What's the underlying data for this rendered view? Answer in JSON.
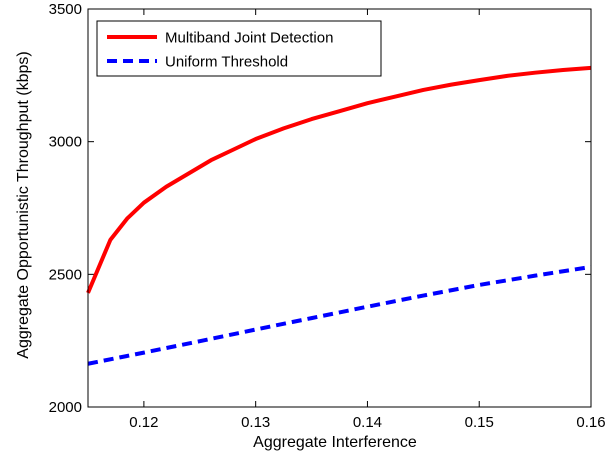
{
  "chart_data": {
    "type": "line",
    "title": "",
    "xlabel": "Aggregate Interference",
    "ylabel": "Aggregate Opportunistic Throughput (kbps)",
    "xlim": [
      0.115,
      0.16
    ],
    "ylim": [
      2000,
      3500
    ],
    "xticks": [
      0.12,
      0.13,
      0.14,
      0.15,
      0.16
    ],
    "xtick_labels": [
      "0.12",
      "0.13",
      "0.14",
      "0.15",
      "0.16"
    ],
    "yticks": [
      2000,
      2500,
      3000,
      3500
    ],
    "ytick_labels": [
      "2000",
      "2500",
      "3000",
      "3500"
    ],
    "grid": false,
    "legend_position": "top-left",
    "series": [
      {
        "name": "Multiband Joint Detection",
        "color": "#ff0000",
        "line_style": "solid",
        "points": [
          {
            "x": 0.115,
            "y": 2430
          },
          {
            "x": 0.117,
            "y": 2630
          },
          {
            "x": 0.1185,
            "y": 2710
          },
          {
            "x": 0.12,
            "y": 2770
          },
          {
            "x": 0.122,
            "y": 2830
          },
          {
            "x": 0.124,
            "y": 2880
          },
          {
            "x": 0.126,
            "y": 2930
          },
          {
            "x": 0.128,
            "y": 2970
          },
          {
            "x": 0.13,
            "y": 3010
          },
          {
            "x": 0.1325,
            "y": 3050
          },
          {
            "x": 0.135,
            "y": 3085
          },
          {
            "x": 0.1375,
            "y": 3115
          },
          {
            "x": 0.14,
            "y": 3145
          },
          {
            "x": 0.1425,
            "y": 3170
          },
          {
            "x": 0.145,
            "y": 3195
          },
          {
            "x": 0.1475,
            "y": 3215
          },
          {
            "x": 0.15,
            "y": 3232
          },
          {
            "x": 0.1525,
            "y": 3248
          },
          {
            "x": 0.155,
            "y": 3260
          },
          {
            "x": 0.1575,
            "y": 3270
          },
          {
            "x": 0.16,
            "y": 3278
          }
        ]
      },
      {
        "name": "Uniform Threshold",
        "color": "#0000ff",
        "line_style": "dashed",
        "points": [
          {
            "x": 0.115,
            "y": 2163
          },
          {
            "x": 0.12,
            "y": 2205
          },
          {
            "x": 0.125,
            "y": 2248
          },
          {
            "x": 0.13,
            "y": 2292
          },
          {
            "x": 0.135,
            "y": 2335
          },
          {
            "x": 0.14,
            "y": 2378
          },
          {
            "x": 0.145,
            "y": 2420
          },
          {
            "x": 0.15,
            "y": 2460
          },
          {
            "x": 0.155,
            "y": 2495
          },
          {
            "x": 0.16,
            "y": 2528
          }
        ]
      }
    ]
  }
}
